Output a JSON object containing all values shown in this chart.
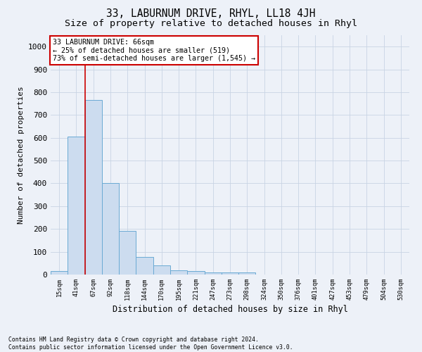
{
  "title": "33, LABURNUM DRIVE, RHYL, LL18 4JH",
  "subtitle": "Size of property relative to detached houses in Rhyl",
  "xlabel": "Distribution of detached houses by size in Rhyl",
  "ylabel": "Number of detached properties",
  "footnote": "Contains HM Land Registry data © Crown copyright and database right 2024.\nContains public sector information licensed under the Open Government Licence v3.0.",
  "annotation_lines": [
    "33 LABURNUM DRIVE: 66sqm",
    "← 25% of detached houses are smaller (519)",
    "73% of semi-detached houses are larger (1,545) →"
  ],
  "bin_labels": [
    "15sqm",
    "41sqm",
    "67sqm",
    "92sqm",
    "118sqm",
    "144sqm",
    "170sqm",
    "195sqm",
    "221sqm",
    "247sqm",
    "273sqm",
    "298sqm",
    "324sqm",
    "350sqm",
    "376sqm",
    "401sqm",
    "427sqm",
    "453sqm",
    "479sqm",
    "504sqm",
    "530sqm"
  ],
  "bar_heights": [
    15,
    605,
    765,
    400,
    190,
    78,
    40,
    20,
    15,
    10,
    10,
    8,
    0,
    0,
    0,
    0,
    0,
    0,
    0,
    0
  ],
  "bar_color": "#ccdcef",
  "bar_edge_color": "#6aaad4",
  "red_line_x": 2.0,
  "ylim": [
    0,
    1050
  ],
  "yticks": [
    0,
    100,
    200,
    300,
    400,
    500,
    600,
    700,
    800,
    900,
    1000
  ],
  "grid_color": "#c8d4e4",
  "background_color": "#edf1f8",
  "title_fontsize": 10.5,
  "subtitle_fontsize": 9.5,
  "annotation_box_color": "#ffffff",
  "annotation_box_edge": "#cc0000",
  "figsize": [
    6.0,
    5.0
  ],
  "dpi": 100
}
